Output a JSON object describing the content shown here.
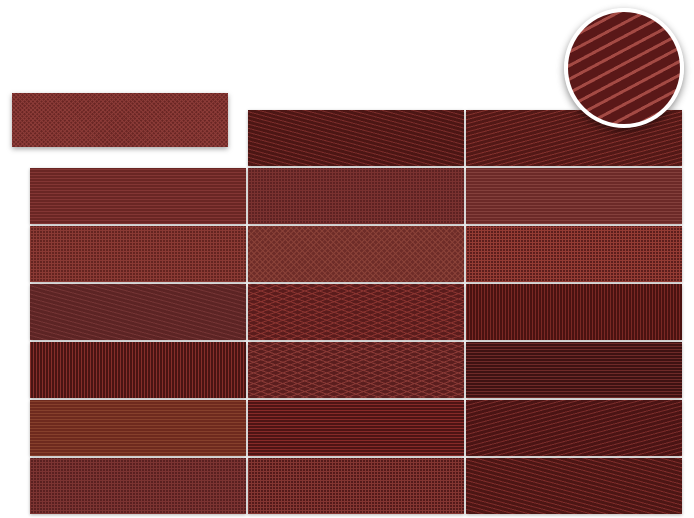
{
  "featured_tile": {
    "base_color": "#6a2624",
    "line_color": "#8c3c38",
    "pattern": "fine-diagonal-weave",
    "icon": "featured-pattern-swatch"
  },
  "magnifier": {
    "base_color": "#5a1818",
    "line_color": "#a44a44",
    "pattern": "wide-diagonal-stripes",
    "icon": "magnifier-zoom-icon"
  },
  "tiles": [
    [
      null,
      {
        "base": "#4c1614",
        "line": "#7a2c2a",
        "pattern": "diag-right"
      },
      {
        "base": "#521816",
        "line": "#82302c",
        "pattern": "diag-left"
      }
    ],
    [
      {
        "base": "#6a2624",
        "line": "#833634",
        "pattern": "horizontal"
      },
      {
        "base": "#5e2222",
        "line": "#7a3230",
        "pattern": "grid"
      },
      {
        "base": "#6c2a28",
        "line": "#84403c",
        "pattern": "horizontal"
      }
    ],
    [
      {
        "base": "#642420",
        "line": "#8a3a34",
        "pattern": "grid"
      },
      {
        "base": "#6e2c28",
        "line": "#8a4238",
        "pattern": "crosshatch"
      },
      {
        "base": "#5c1e1c",
        "line": "#943c34",
        "pattern": "grid"
      }
    ],
    [
      {
        "base": "#5c2424",
        "line": "#743434",
        "pattern": "diag-right"
      },
      {
        "base": "#5a1c1c",
        "line": "#8a3430",
        "pattern": "diamond"
      },
      {
        "base": "#4a1210",
        "line": "#7a2824",
        "pattern": "vertical"
      }
    ],
    [
      {
        "base": "#4a1412",
        "line": "#862e2a",
        "pattern": "vertical"
      },
      {
        "base": "#5a1e1e",
        "line": "#8a3a36",
        "pattern": "diamond"
      },
      {
        "base": "#3e1212",
        "line": "#6e2a28",
        "pattern": "horizontal"
      }
    ],
    [
      {
        "base": "#6e2a1e",
        "line": "#86402c",
        "pattern": "horizontal"
      },
      {
        "base": "#4e1414",
        "line": "#862a28",
        "pattern": "horizontal"
      },
      {
        "base": "#4a1414",
        "line": "#7a2c2a",
        "pattern": "diag-left"
      }
    ],
    [
      {
        "base": "#5a2020",
        "line": "#7c3432",
        "pattern": "grid"
      },
      {
        "base": "#541a1a",
        "line": "#843632",
        "pattern": "grid"
      },
      {
        "base": "#4c1614",
        "line": "#7e2c2a",
        "pattern": "diag-right"
      }
    ]
  ]
}
